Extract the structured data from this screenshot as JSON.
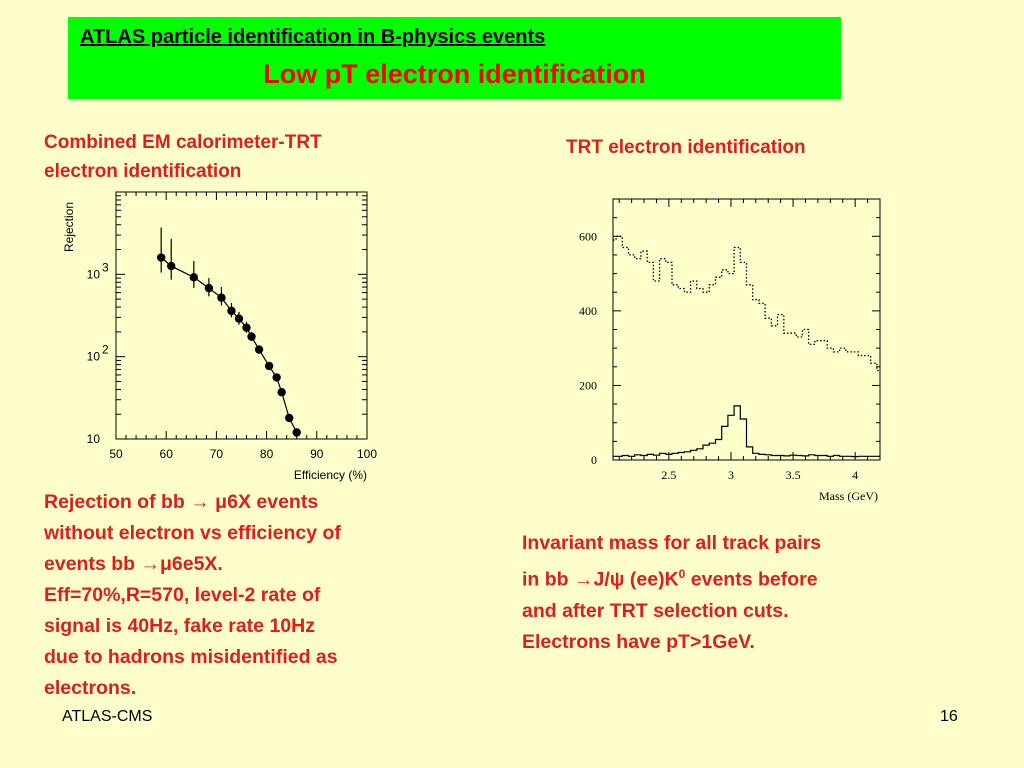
{
  "header": {
    "subtitle": "ATLAS particle identification in B-physics events",
    "title": "Low pT electron identification"
  },
  "left": {
    "heading_lines": [
      "Combined EM calorimeter-TRT",
      "electron identification"
    ],
    "caption": {
      "line1_pre": "Rejection of bb ",
      "line1_arrow": "→",
      "line1_mu": " μ",
      "line1_post": "6X events",
      "line2": "without electron vs efficiency of",
      "line3_pre": "events  bb ",
      "line3_arrow": "→",
      "line3_mu": "μ",
      "line3_post": "6e5X.",
      "line4": "Eff=70%,R=570, level-2 rate of",
      "line5": "signal is 40Hz, fake rate 10Hz",
      "line6": "due to hadrons misidentified as",
      "line7": "electrons."
    }
  },
  "right": {
    "heading": "TRT electron identification",
    "caption": {
      "line1": "Invariant mass for all track pairs",
      "line2_pre": "in bb ",
      "line2_arrow": "→",
      "line2_mid": "J/",
      "line2_psi": "ψ",
      "line2_post1": " (ee)K",
      "line2_sup": "0",
      "line2_post2": " events before",
      "line3": "and after TRT selection cuts.",
      "line4": "Electrons have pT>1GeV."
    }
  },
  "footer": {
    "left": "ATLAS-CMS",
    "right": "16"
  },
  "chart_data": [
    {
      "type": "scatter",
      "xlabel": "Efficiency (%)",
      "ylabel": "Rejection",
      "xlim": [
        50,
        100
      ],
      "ylim": [
        10,
        10000
      ],
      "log_y": true,
      "xticks": [
        "50",
        "60",
        "70",
        "80",
        "90",
        "100"
      ],
      "yticks": [
        {
          "base": "10",
          "exp": "",
          "value": 10
        },
        {
          "base": "10",
          "exp": "2",
          "value": 100
        },
        {
          "base": "10",
          "exp": "3",
          "value": 1000
        }
      ],
      "points": [
        {
          "x": 59,
          "y": 1600,
          "lo": 1050,
          "hi": 3700
        },
        {
          "x": 61,
          "y": 1260,
          "lo": 860,
          "hi": 2700
        },
        {
          "x": 65.5,
          "y": 920,
          "lo": 680,
          "hi": 1450
        },
        {
          "x": 68.5,
          "y": 680,
          "lo": 540,
          "hi": 900
        },
        {
          "x": 71,
          "y": 520,
          "lo": 420,
          "hi": 700
        },
        {
          "x": 73,
          "y": 360,
          "lo": 300,
          "hi": 450
        },
        {
          "x": 74.5,
          "y": 290,
          "lo": 245,
          "hi": 350
        },
        {
          "x": 76,
          "y": 225,
          "lo": 195,
          "hi": 265
        },
        {
          "x": 77,
          "y": 175,
          "lo": 155,
          "hi": 200
        },
        {
          "x": 78.5,
          "y": 122,
          "lo": 110,
          "hi": 136
        },
        {
          "x": 80.5,
          "y": 77
        },
        {
          "x": 82,
          "y": 56
        },
        {
          "x": 83,
          "y": 37
        },
        {
          "x": 84.5,
          "y": 18
        },
        {
          "x": 86,
          "y": 12
        }
      ]
    },
    {
      "type": "line",
      "xlabel": "Mass (GeV)",
      "ylabel": "",
      "xlim": [
        2.05,
        4.2
      ],
      "ylim": [
        0,
        700
      ],
      "xticks": [
        "2.5",
        "3",
        "3.5",
        "4"
      ],
      "yticks": [
        "0",
        "200",
        "400",
        "600"
      ],
      "series": [
        {
          "style": "dotted",
          "x": [
            2.05,
            2.1,
            2.15,
            2.2,
            2.25,
            2.3,
            2.35,
            2.4,
            2.45,
            2.5,
            2.55,
            2.6,
            2.65,
            2.7,
            2.75,
            2.8,
            2.85,
            2.9,
            2.95,
            3.0,
            3.05,
            3.1,
            3.15,
            3.2,
            3.25,
            3.3,
            3.35,
            3.4,
            3.45,
            3.5,
            3.55,
            3.6,
            3.65,
            3.7,
            3.75,
            3.8,
            3.85,
            3.9,
            3.95,
            4.0,
            4.05,
            4.1,
            4.15,
            4.2
          ],
          "y": [
            590,
            600,
            570,
            550,
            540,
            560,
            530,
            480,
            540,
            530,
            470,
            460,
            450,
            480,
            460,
            450,
            470,
            490,
            510,
            500,
            570,
            530,
            470,
            430,
            420,
            380,
            360,
            390,
            340,
            340,
            330,
            350,
            310,
            320,
            320,
            300,
            290,
            300,
            290,
            290,
            280,
            280,
            260,
            240
          ]
        },
        {
          "style": "solid",
          "x": [
            2.05,
            2.1,
            2.15,
            2.2,
            2.25,
            2.3,
            2.35,
            2.4,
            2.45,
            2.5,
            2.55,
            2.6,
            2.65,
            2.7,
            2.75,
            2.8,
            2.85,
            2.9,
            2.95,
            3.0,
            3.05,
            3.1,
            3.15,
            3.2,
            3.25,
            3.3,
            3.35,
            3.4,
            3.45,
            3.5,
            3.55,
            3.6,
            3.65,
            3.7,
            3.75,
            3.8,
            3.85,
            3.9,
            3.95,
            4.0,
            4.05,
            4.1,
            4.15,
            4.2
          ],
          "y": [
            10,
            10,
            12,
            10,
            14,
            12,
            15,
            13,
            18,
            15,
            18,
            20,
            22,
            26,
            30,
            40,
            45,
            55,
            90,
            120,
            145,
            110,
            35,
            18,
            15,
            14,
            12,
            12,
            11,
            13,
            12,
            11,
            14,
            12,
            12,
            10,
            12,
            10,
            10,
            9,
            10,
            10,
            10,
            10
          ]
        }
      ]
    }
  ]
}
